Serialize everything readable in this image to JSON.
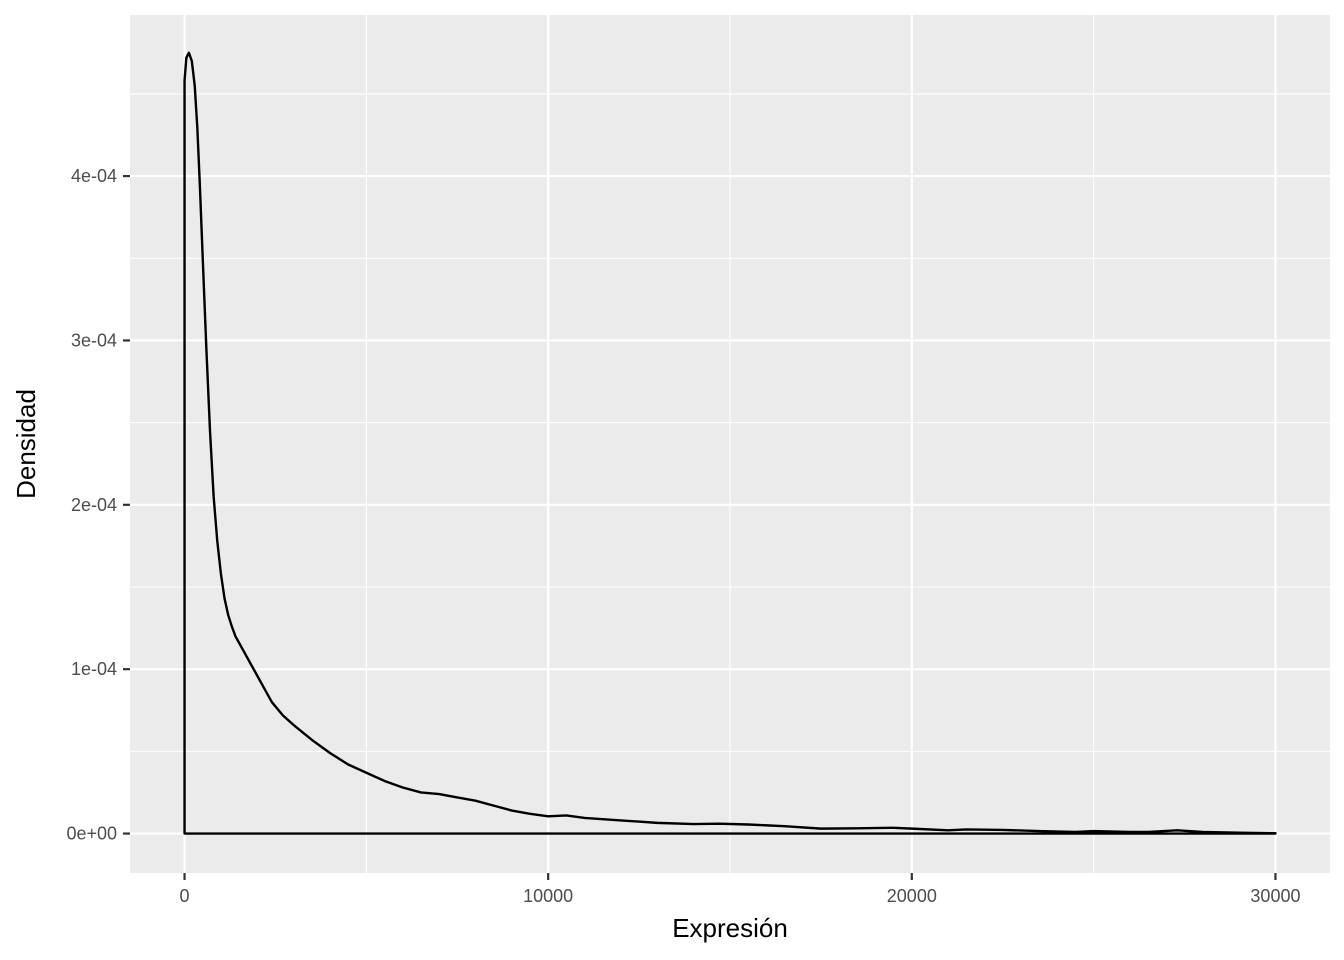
{
  "chart_data": {
    "type": "area",
    "geom": "density",
    "xlabel": "Expresión",
    "ylabel": "Densidad",
    "xlim": [
      -1500,
      31500
    ],
    "ylim": [
      -2.4e-05,
      0.000498
    ],
    "x_ticks": [
      0,
      10000,
      20000,
      30000
    ],
    "x_tick_labels": [
      "0",
      "10000",
      "20000",
      "30000"
    ],
    "x_minor_ticks": [
      5000,
      15000,
      25000
    ],
    "y_ticks": [
      0,
      0.0001,
      0.0002,
      0.0003,
      0.0004
    ],
    "y_tick_labels": [
      "0e+00",
      "1e-04",
      "2e-04",
      "3e-04",
      "4e-04"
    ],
    "y_minor_ticks": [
      5e-05,
      0.00015,
      0.00025,
      0.00035,
      0.00045
    ],
    "grid": true,
    "panel_background": "#ebebeb",
    "grid_color": "#ffffff",
    "line_color": "#000000",
    "series": [
      {
        "x": [
          0,
          50,
          120,
          200,
          280,
          350,
          420,
          500,
          600,
          700,
          800,
          900,
          1000,
          1100,
          1200,
          1300,
          1400,
          1500,
          1600,
          1800,
          2000,
          2200,
          2400,
          2700,
          3000,
          3500,
          4000,
          4500,
          5000,
          5500,
          6000,
          6500,
          7000,
          7500,
          8000,
          8500,
          9000,
          9500,
          10000,
          10500,
          11000,
          12000,
          13000,
          14000,
          14700,
          15500,
          16500,
          17500,
          18500,
          19500,
          20000,
          21000,
          21500,
          22500,
          23500,
          24500,
          25000,
          26000,
          26500,
          27300,
          28000,
          29000,
          30000
        ],
        "y": [
          0.000458,
          0.000472,
          0.000475,
          0.00047,
          0.000455,
          0.00043,
          0.000395,
          0.00035,
          0.000295,
          0.000245,
          0.000205,
          0.000178,
          0.000158,
          0.000143,
          0.000133,
          0.000126,
          0.00012,
          0.000116,
          0.000112,
          0.000104,
          9.6e-05,
          8.8e-05,
          8e-05,
          7.2e-05,
          6.6e-05,
          5.7e-05,
          4.9e-05,
          4.2e-05,
          3.7e-05,
          3.2e-05,
          2.8e-05,
          2.5e-05,
          2.4e-05,
          2.2e-05,
          2e-05,
          1.7e-05,
          1.4e-05,
          1.2e-05,
          1.05e-05,
          1.1e-05,
          9.5e-06,
          8e-06,
          6.5e-06,
          5.8e-06,
          6e-06,
          5.5e-06,
          4.5e-06,
          3e-06,
          3.2e-06,
          3.5e-06,
          3e-06,
          2e-06,
          2.5e-06,
          2.2e-06,
          1.5e-06,
          1e-06,
          1.5e-06,
          1e-06,
          1e-06,
          2e-06,
          1e-06,
          5e-07,
          2e-07
        ]
      }
    ]
  }
}
